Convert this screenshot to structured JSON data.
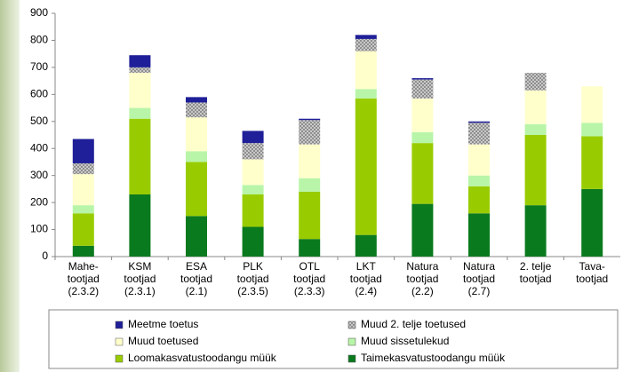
{
  "chart_data": {
    "type": "stacked-bar",
    "categories": [
      [
        "Mahe-",
        "tootjad",
        "(2.3.2)"
      ],
      [
        "KSM",
        "tootjad",
        "(2.3.1)"
      ],
      [
        "ESA",
        "tootjad",
        "(2.1)"
      ],
      [
        "PLK",
        "tootjad",
        "(2.3.5)"
      ],
      [
        "OTL",
        "tootjad",
        "(2.3.3)"
      ],
      [
        "LKT",
        "tootjad",
        "(2.4)"
      ],
      [
        "Natura",
        "tootjad",
        "(2.2)"
      ],
      [
        "Natura",
        "tootjad",
        "(2.7)"
      ],
      [
        "2. telje",
        "tootjad"
      ],
      [
        "Tava-",
        "tootjad"
      ]
    ],
    "series": [
      {
        "name": "Meetme toetus",
        "color": "#1f1f99",
        "values": [
          90,
          45,
          20,
          45,
          5,
          15,
          5,
          5,
          0,
          0
        ]
      },
      {
        "name": "Muud 2. telje toetused",
        "color": "#c0c0c0",
        "values": [
          40,
          20,
          55,
          60,
          90,
          45,
          70,
          80,
          65,
          0
        ]
      },
      {
        "name": "Muud toetused",
        "color": "#ffffcc",
        "values": [
          115,
          130,
          125,
          95,
          125,
          140,
          125,
          115,
          125,
          135
        ]
      },
      {
        "name": "Muud sissetulekud",
        "color": "#b8f5a8",
        "values": [
          30,
          40,
          40,
          35,
          50,
          35,
          40,
          40,
          40,
          50
        ]
      },
      {
        "name": "Loomakasvatustoodangu müük",
        "color": "#99cc00",
        "values": [
          120,
          280,
          200,
          120,
          175,
          505,
          225,
          100,
          260,
          195
        ]
      },
      {
        "name": "Taimekasvatustoodangu müük",
        "color": "#0a7a1e",
        "values": [
          40,
          230,
          150,
          110,
          65,
          80,
          195,
          160,
          190,
          250
        ]
      }
    ],
    "ylim": [
      0,
      900
    ],
    "yticks": [
      0,
      100,
      200,
      300,
      400,
      500,
      600,
      700,
      800,
      900
    ]
  }
}
